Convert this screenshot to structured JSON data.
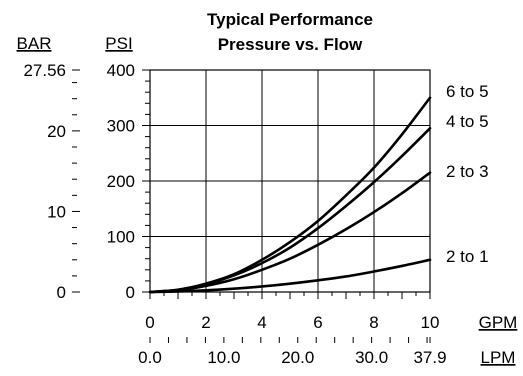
{
  "chart_data": {
    "type": "line",
    "title": "Typical Performance",
    "subtitle": "Pressure vs. Flow",
    "xlabel": "GPM",
    "x2label": "LPM",
    "ylabel": "PSI",
    "y2label": "BAR",
    "xlim": [
      0,
      10
    ],
    "ylim": [
      0,
      400
    ],
    "x_ticks": [
      "0",
      "2",
      "4",
      "6",
      "8",
      "10"
    ],
    "x2_ticks": [
      "0.0",
      "10.0",
      "20.0",
      "30.0",
      "37.9"
    ],
    "y_ticks": [
      "0",
      "100",
      "200",
      "300",
      "400"
    ],
    "y2_ticks": [
      "0",
      "10",
      "20",
      "27.56"
    ],
    "grid": true,
    "series": [
      {
        "name": "6 to 5",
        "x": [
          0,
          1,
          2,
          3,
          4,
          5,
          6,
          7,
          8,
          9,
          10
        ],
        "y": [
          0,
          4,
          15,
          32,
          58,
          90,
          128,
          174,
          224,
          284,
          350
        ]
      },
      {
        "name": "4 to 5",
        "x": [
          0,
          1,
          2,
          3,
          4,
          5,
          6,
          7,
          8,
          9,
          10
        ],
        "y": [
          0,
          4,
          14,
          30,
          52,
          80,
          115,
          155,
          198,
          245,
          295
        ]
      },
      {
        "name": "2 to 3",
        "x": [
          0,
          1,
          2,
          3,
          4,
          5,
          6,
          7,
          8,
          9,
          10
        ],
        "y": [
          0,
          3,
          11,
          23,
          40,
          60,
          85,
          113,
          144,
          178,
          215
        ]
      },
      {
        "name": "2 to 1",
        "x": [
          0,
          1,
          2,
          3,
          4,
          5,
          6,
          7,
          8,
          9,
          10
        ],
        "y": [
          0,
          1,
          3,
          6,
          10,
          15,
          21,
          28,
          37,
          47,
          58
        ]
      }
    ]
  }
}
